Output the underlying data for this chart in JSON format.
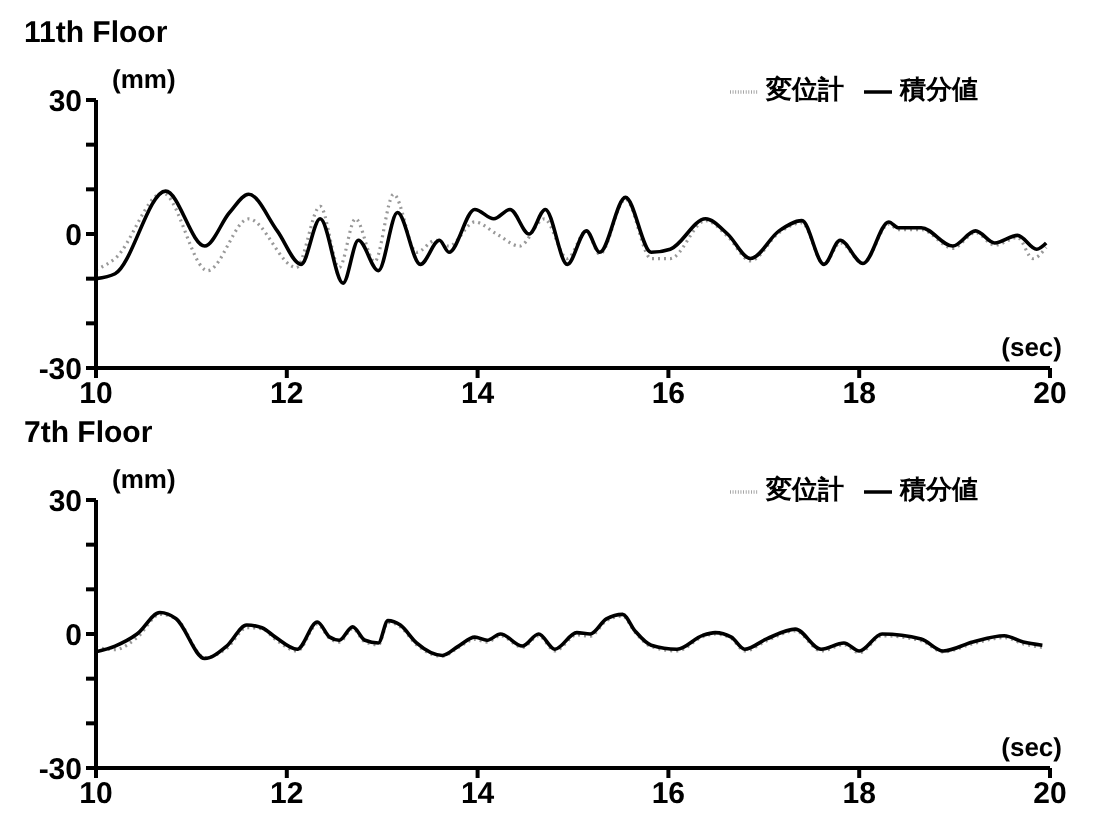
{
  "chart_data": [
    {
      "type": "line",
      "title": "11th Floor",
      "ylabel": "(mm)",
      "xlabel": "(sec)",
      "legend": "top right",
      "marker": "none",
      "xlim": [
        10,
        20
      ],
      "xticks": [
        10,
        12,
        14,
        16,
        18,
        20
      ],
      "ylim": [
        -30,
        30
      ],
      "yticks": [
        -30,
        {
          "value": -20,
          "label": null
        },
        {
          "value": -10,
          "label": null
        },
        0,
        {
          "value": 10,
          "label": null
        },
        {
          "value": 20,
          "label": null
        },
        30
      ],
      "series": [
        {
          "name": "変位計",
          "color": "#999999",
          "line_style": "dotted",
          "x": [
            10,
            10.2,
            10.7,
            11.17,
            11.6,
            12.1,
            12.35,
            12.55,
            12.72,
            12.92,
            13.12,
            13.36,
            13.56,
            13.7,
            13.97,
            14.2,
            14.44,
            14.7,
            14.94,
            15.14,
            15.28,
            15.55,
            15.82,
            16.02,
            16.39,
            16.62,
            16.86,
            17.16,
            17.4,
            17.63,
            17.8,
            18.04,
            18.31,
            18.41,
            18.65,
            18.98,
            19.22,
            19.42,
            19.66,
            19.82,
            19.96
          ],
          "values": [
            -8,
            -5.5,
            9.2,
            -8.2,
            3.4,
            -7.5,
            6.2,
            -7.5,
            3.4,
            -6.2,
            8.9,
            -4.1,
            -1.4,
            -2.7,
            2.7,
            0,
            -2.7,
            3.4,
            -5.5,
            0.7,
            -4.5,
            7.8,
            -5.5,
            -5.5,
            3,
            -0.5,
            -6,
            0.3,
            2.5,
            -6.8,
            -2,
            -6.6,
            2.2,
            1,
            1,
            -3.2,
            0.3,
            -2.5,
            -0.8,
            -5.5,
            -3
          ]
        },
        {
          "name": "積分値",
          "color": "#000000",
          "line_style": "solid",
          "x": [
            10,
            10.2,
            10.73,
            11.14,
            11.4,
            11.6,
            11.9,
            12.15,
            12.35,
            12.59,
            12.75,
            12.96,
            13.16,
            13.4,
            13.6,
            13.7,
            13.97,
            14.17,
            14.34,
            14.54,
            14.71,
            14.94,
            15.14,
            15.28,
            15.55,
            15.82,
            16.02,
            16.39,
            16.62,
            16.86,
            17.16,
            17.4,
            17.63,
            17.8,
            18.04,
            18.31,
            18.41,
            18.65,
            18.98,
            19.22,
            19.42,
            19.66,
            19.86,
            19.96
          ],
          "values": [
            -10,
            -8.9,
            9.6,
            -2.7,
            4.8,
            8.9,
            0.7,
            -6.8,
            3.4,
            -11,
            -1.4,
            -8.2,
            4.8,
            -6.8,
            -1.4,
            -4.1,
            5.5,
            3.4,
            5.5,
            0,
            5.5,
            -6.8,
            0.7,
            -4.1,
            8.2,
            -4.1,
            -3.4,
            3.4,
            0,
            -5.5,
            0.7,
            3,
            -6.8,
            -1.4,
            -6.6,
            2.7,
            1.4,
            1.4,
            -2.7,
            0.7,
            -2,
            -0.3,
            -3.4,
            -2
          ]
        }
      ]
    },
    {
      "type": "line",
      "title": "7th Floor",
      "ylabel": "(mm)",
      "xlabel": "(sec)",
      "legend": "top right",
      "marker": "none",
      "xlim": [
        10,
        20
      ],
      "xticks": [
        10,
        12,
        14,
        16,
        18,
        20
      ],
      "ylim": [
        -30,
        30
      ],
      "yticks": [
        -30,
        {
          "value": -20,
          "label": null
        },
        {
          "value": -10,
          "label": null
        },
        0,
        {
          "value": 10,
          "label": null
        },
        {
          "value": 20,
          "label": null
        },
        30
      ],
      "series": [
        {
          "name": "変位計",
          "color": "#999999",
          "line_style": "dotted",
          "x": [
            10,
            10.2,
            10.43,
            10.67,
            10.84,
            11.14,
            11.37,
            11.58,
            11.74,
            11.88,
            12.11,
            12.32,
            12.45,
            12.55,
            12.69,
            12.82,
            12.96,
            13.06,
            13.19,
            13.36,
            13.63,
            13.8,
            13.97,
            14.1,
            14.24,
            14.47,
            14.64,
            14.81,
            15.04,
            15.18,
            15.35,
            15.52,
            15.65,
            15.82,
            16.09,
            16.36,
            16.49,
            16.66,
            16.8,
            17.03,
            17.33,
            17.6,
            17.84,
            18.0,
            18.24,
            18.65,
            18.88,
            19.19,
            19.52,
            19.72,
            19.92
          ],
          "values": [
            -3,
            -3.5,
            -0.8,
            4.4,
            3.4,
            -5.3,
            -3.2,
            1.4,
            1.2,
            -1.2,
            -3.8,
            2.2,
            -1,
            -1.8,
            1.2,
            -1.8,
            -2.4,
            2.6,
            1.6,
            -2.4,
            -5,
            -3,
            -1.2,
            -1.8,
            -0.4,
            -3,
            -0.4,
            -3.8,
            -0.2,
            -0.5,
            3,
            4,
            0.4,
            -2.8,
            -3.8,
            -0.6,
            0,
            -1,
            -3.8,
            -1.5,
            0.7,
            -3.8,
            -2.4,
            -4.2,
            -0.4,
            -1.5,
            -4,
            -2.2,
            -0.8,
            -2.2,
            -3
          ]
        },
        {
          "name": "積分値",
          "color": "#000000",
          "line_style": "solid",
          "x": [
            10,
            10.2,
            10.43,
            10.67,
            10.84,
            11.14,
            11.37,
            11.58,
            11.74,
            11.88,
            12.11,
            12.32,
            12.45,
            12.55,
            12.69,
            12.82,
            12.96,
            13.06,
            13.19,
            13.36,
            13.63,
            13.8,
            13.97,
            14.1,
            14.24,
            14.47,
            14.64,
            14.81,
            15.04,
            15.18,
            15.35,
            15.52,
            15.65,
            15.82,
            16.09,
            16.36,
            16.49,
            16.66,
            16.8,
            17.03,
            17.33,
            17.6,
            17.84,
            18.0,
            18.24,
            18.65,
            18.88,
            19.19,
            19.52,
            19.72,
            19.92
          ],
          "values": [
            -4,
            -2.7,
            0,
            4.8,
            3.4,
            -5.5,
            -2.7,
            2,
            1.4,
            -0.7,
            -3.4,
            2.7,
            -0.7,
            -1.4,
            1.6,
            -1.4,
            -2,
            3,
            2,
            -2,
            -4.8,
            -2.7,
            -0.7,
            -1.4,
            0,
            -2.7,
            0,
            -3.4,
            0.3,
            0,
            3.4,
            4.4,
            0.7,
            -2.5,
            -3.4,
            -0.3,
            0.3,
            -0.7,
            -3.4,
            -1.1,
            1.1,
            -3.4,
            -2,
            -3.8,
            0,
            -1.1,
            -3.8,
            -1.8,
            -0.4,
            -1.8,
            -2.5
          ]
        }
      ]
    }
  ]
}
